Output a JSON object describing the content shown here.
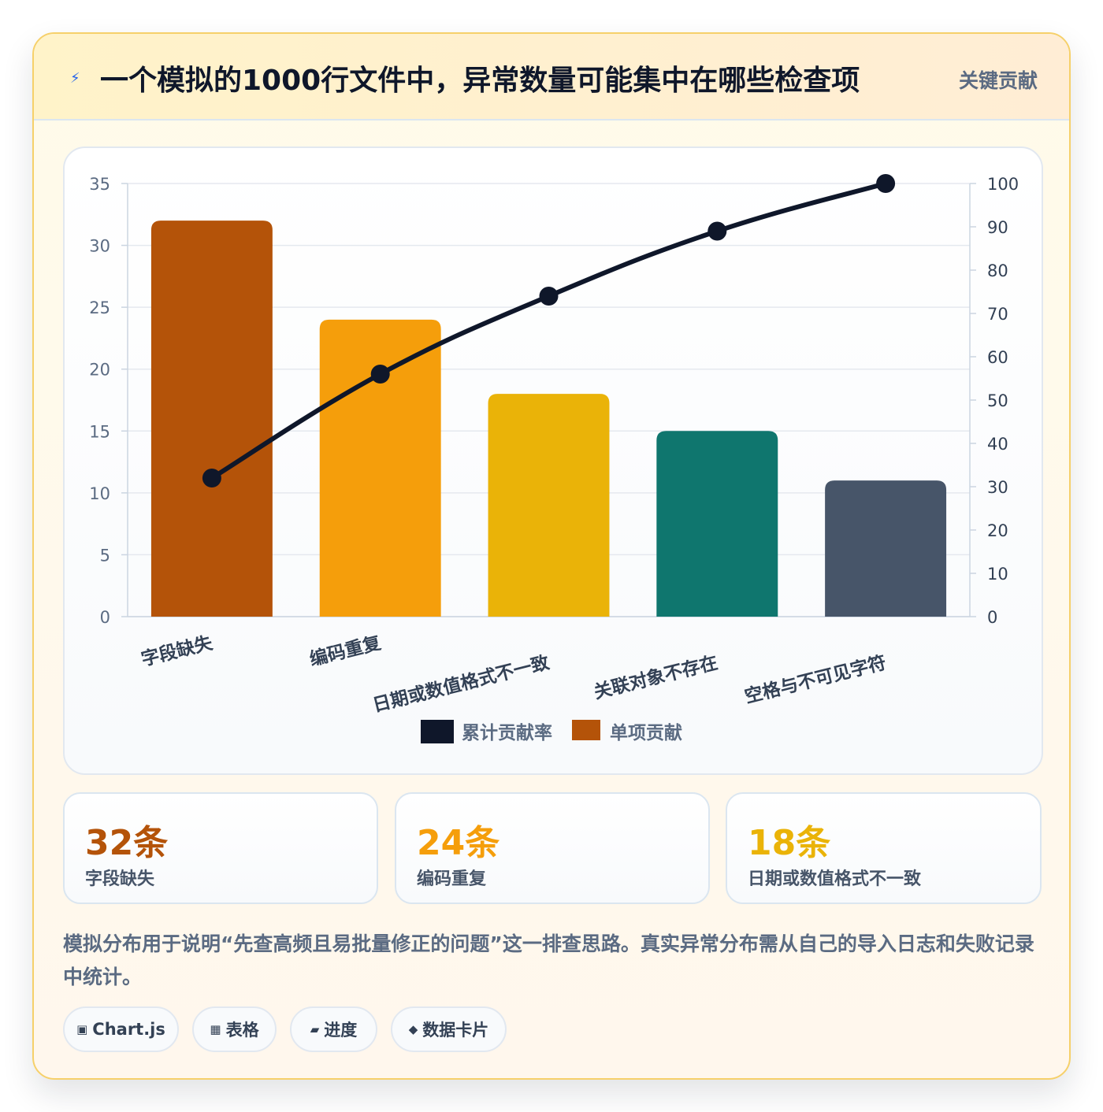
{
  "header": {
    "icon": "bolt-icon",
    "title": "一个模拟的1000行文件中，异常数量可能集中在哪些检查项",
    "tag": "关键贡献"
  },
  "chart_data": {
    "type": "bar",
    "categories": [
      "字段缺失",
      "编码重复",
      "日期或数值格式不一致",
      "关联对象不存在",
      "空格与不可见字符"
    ],
    "series": [
      {
        "name": "累计贡献率",
        "type": "line",
        "axis": "right",
        "color": "#0f172a",
        "values": [
          32,
          56,
          74,
          89,
          100
        ]
      },
      {
        "name": "单项贡献",
        "type": "bar",
        "axis": "left",
        "colors": [
          "#b45309",
          "#f59e0b",
          "#eab308",
          "#0f766e",
          "#475569"
        ],
        "values": [
          32,
          24,
          18,
          15,
          11
        ]
      }
    ],
    "ylim": [
      0,
      35
    ],
    "yticks": [
      0,
      5,
      10,
      15,
      20,
      25,
      30,
      35
    ],
    "y2lim": [
      0,
      100
    ],
    "y2ticks": [
      0,
      10,
      20,
      30,
      40,
      50,
      60,
      70,
      80,
      90,
      100
    ],
    "grid": true,
    "legend": "bottom"
  },
  "stats": [
    {
      "value": "32条",
      "label": "字段缺失",
      "color": "#b45309"
    },
    {
      "value": "24条",
      "label": "编码重复",
      "color": "#f59e0b"
    },
    {
      "value": "18条",
      "label": "日期或数值格式不一致",
      "color": "#eab308"
    }
  ],
  "note": "模拟分布用于说明“先查高频且易批量修正的问题”这一排查思路。真实异常分布需从自己的导入日志和失败记录中统计。",
  "chips": [
    {
      "icon": "▣",
      "icon_name": "chart-icon",
      "label": "Chart.js"
    },
    {
      "icon": "▦",
      "icon_name": "table-icon",
      "label": "表格"
    },
    {
      "icon": "▰",
      "icon_name": "progress-icon",
      "label": "进度"
    },
    {
      "icon": "◆",
      "icon_name": "data-card-icon",
      "label": "数据卡片"
    }
  ]
}
